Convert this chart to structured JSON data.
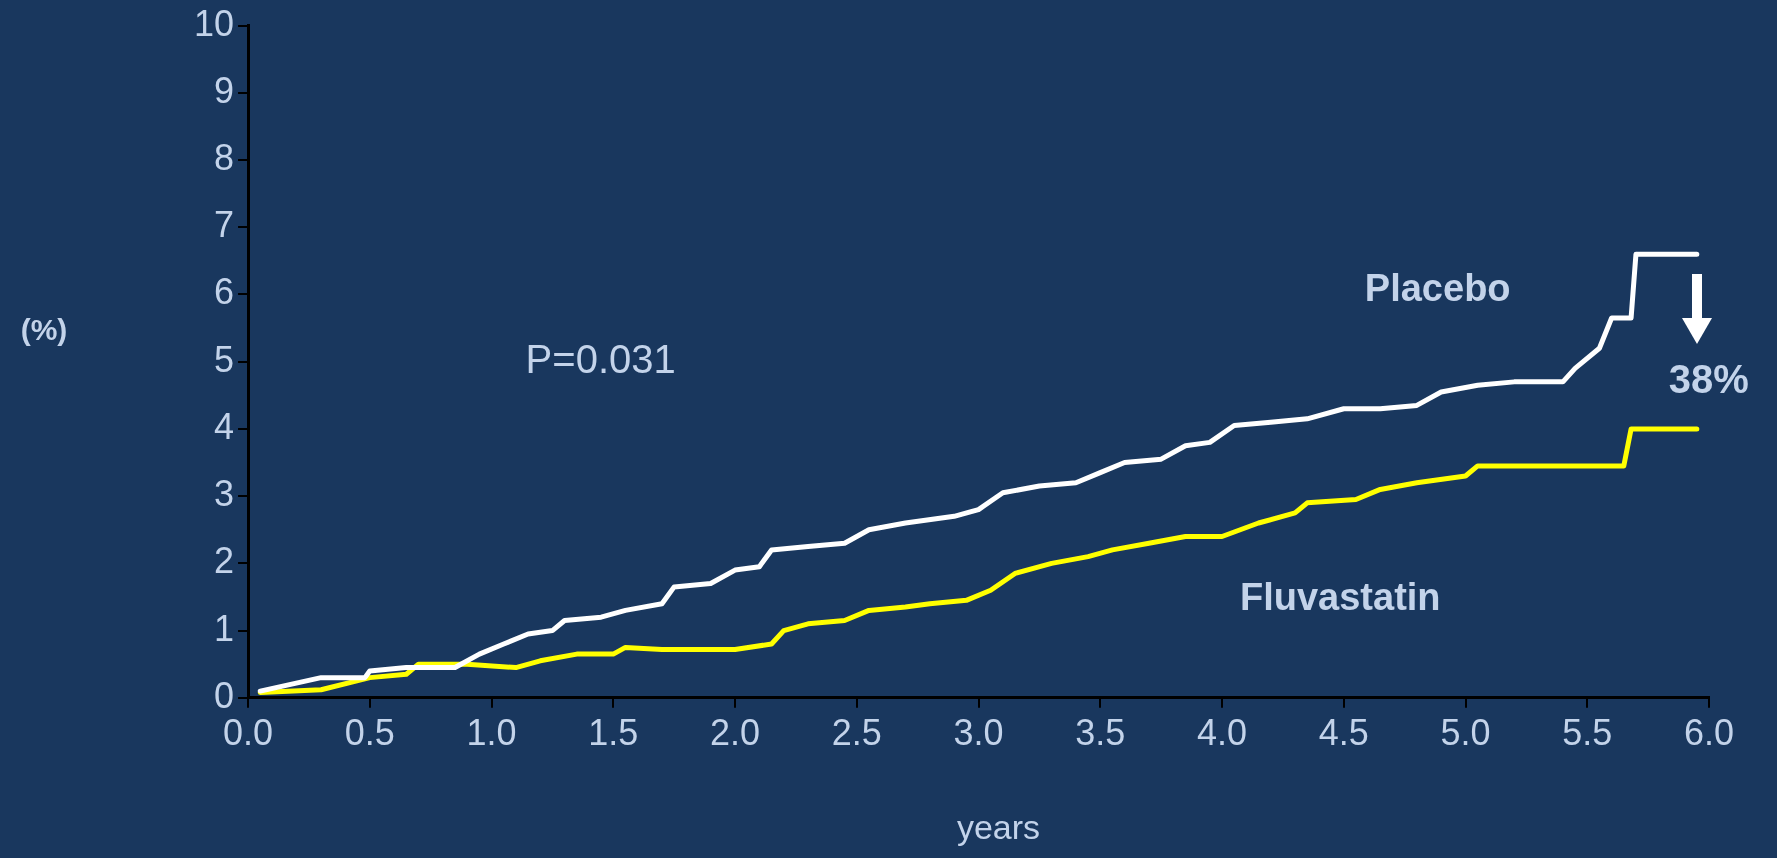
{
  "chart_data": {
    "type": "line",
    "xlabel": "years",
    "ylabel": "(%)",
    "xlim": [
      0,
      6
    ],
    "xticks": [
      {
        "value": 0,
        "label": "0.0"
      },
      {
        "value": 0.5,
        "label": "0.5"
      },
      {
        "value": 1,
        "label": "1.0"
      },
      {
        "value": 1.5,
        "label": "1.5"
      },
      {
        "value": 2,
        "label": "2.0"
      },
      {
        "value": 2.5,
        "label": "2.5"
      },
      {
        "value": 3,
        "label": "3.0"
      },
      {
        "value": 3.5,
        "label": "3.5"
      },
      {
        "value": 4,
        "label": "4.0"
      },
      {
        "value": 4.5,
        "label": "4.5"
      },
      {
        "value": 5,
        "label": "5.0"
      },
      {
        "value": 5.5,
        "label": "5.5"
      },
      {
        "value": 6,
        "label": "6.0"
      }
    ],
    "ylim": [
      0,
      10
    ],
    "yticks": [
      0,
      1,
      2,
      3,
      4,
      5,
      6,
      7,
      8,
      9,
      10
    ],
    "grid": false,
    "legend": false,
    "marker": "none",
    "annotations": [
      "P=0.031",
      "38%"
    ],
    "series": [
      {
        "name": "Placebo",
        "color": "#ffffff",
        "x": [
          0.05,
          0.3,
          0.48,
          0.5,
          0.65,
          0.85,
          0.95,
          1.05,
          1.15,
          1.25,
          1.3,
          1.45,
          1.55,
          1.7,
          1.75,
          1.9,
          2.0,
          2.1,
          2.15,
          2.3,
          2.45,
          2.55,
          2.7,
          2.9,
          3.0,
          3.1,
          3.25,
          3.4,
          3.5,
          3.6,
          3.75,
          3.85,
          3.95,
          4.05,
          4.2,
          4.35,
          4.5,
          4.65,
          4.8,
          4.9,
          5.05,
          5.2,
          5.4,
          5.45,
          5.55,
          5.6,
          5.68,
          5.7,
          5.95
        ],
        "values": [
          0.1,
          0.3,
          0.3,
          0.4,
          0.45,
          0.45,
          0.65,
          0.8,
          0.95,
          1.0,
          1.15,
          1.2,
          1.3,
          1.4,
          1.65,
          1.7,
          1.9,
          1.95,
          2.2,
          2.25,
          2.3,
          2.5,
          2.6,
          2.7,
          2.8,
          3.05,
          3.15,
          3.2,
          3.35,
          3.5,
          3.55,
          3.75,
          3.8,
          4.05,
          4.1,
          4.15,
          4.3,
          4.3,
          4.35,
          4.55,
          4.65,
          4.7,
          4.7,
          4.9,
          5.2,
          5.65,
          5.65,
          6.6,
          6.6
        ]
      },
      {
        "name": "Fluvastatin",
        "color": "#ffff00",
        "x": [
          0.05,
          0.3,
          0.5,
          0.65,
          0.7,
          0.9,
          1.1,
          1.2,
          1.35,
          1.5,
          1.55,
          1.7,
          2.0,
          2.15,
          2.2,
          2.3,
          2.45,
          2.55,
          2.7,
          2.8,
          2.95,
          3.05,
          3.15,
          3.3,
          3.45,
          3.55,
          3.7,
          3.85,
          4.0,
          4.15,
          4.3,
          4.35,
          4.55,
          4.65,
          4.8,
          5.0,
          5.05,
          5.3,
          5.65,
          5.68,
          5.95
        ],
        "values": [
          0.08,
          0.12,
          0.3,
          0.35,
          0.5,
          0.5,
          0.45,
          0.55,
          0.65,
          0.65,
          0.75,
          0.72,
          0.72,
          0.8,
          1.0,
          1.1,
          1.15,
          1.3,
          1.35,
          1.4,
          1.45,
          1.6,
          1.85,
          2.0,
          2.1,
          2.2,
          2.3,
          2.4,
          2.4,
          2.6,
          2.75,
          2.9,
          2.95,
          3.1,
          3.2,
          3.3,
          3.45,
          3.45,
          3.45,
          4.0,
          4.0
        ]
      }
    ]
  }
}
